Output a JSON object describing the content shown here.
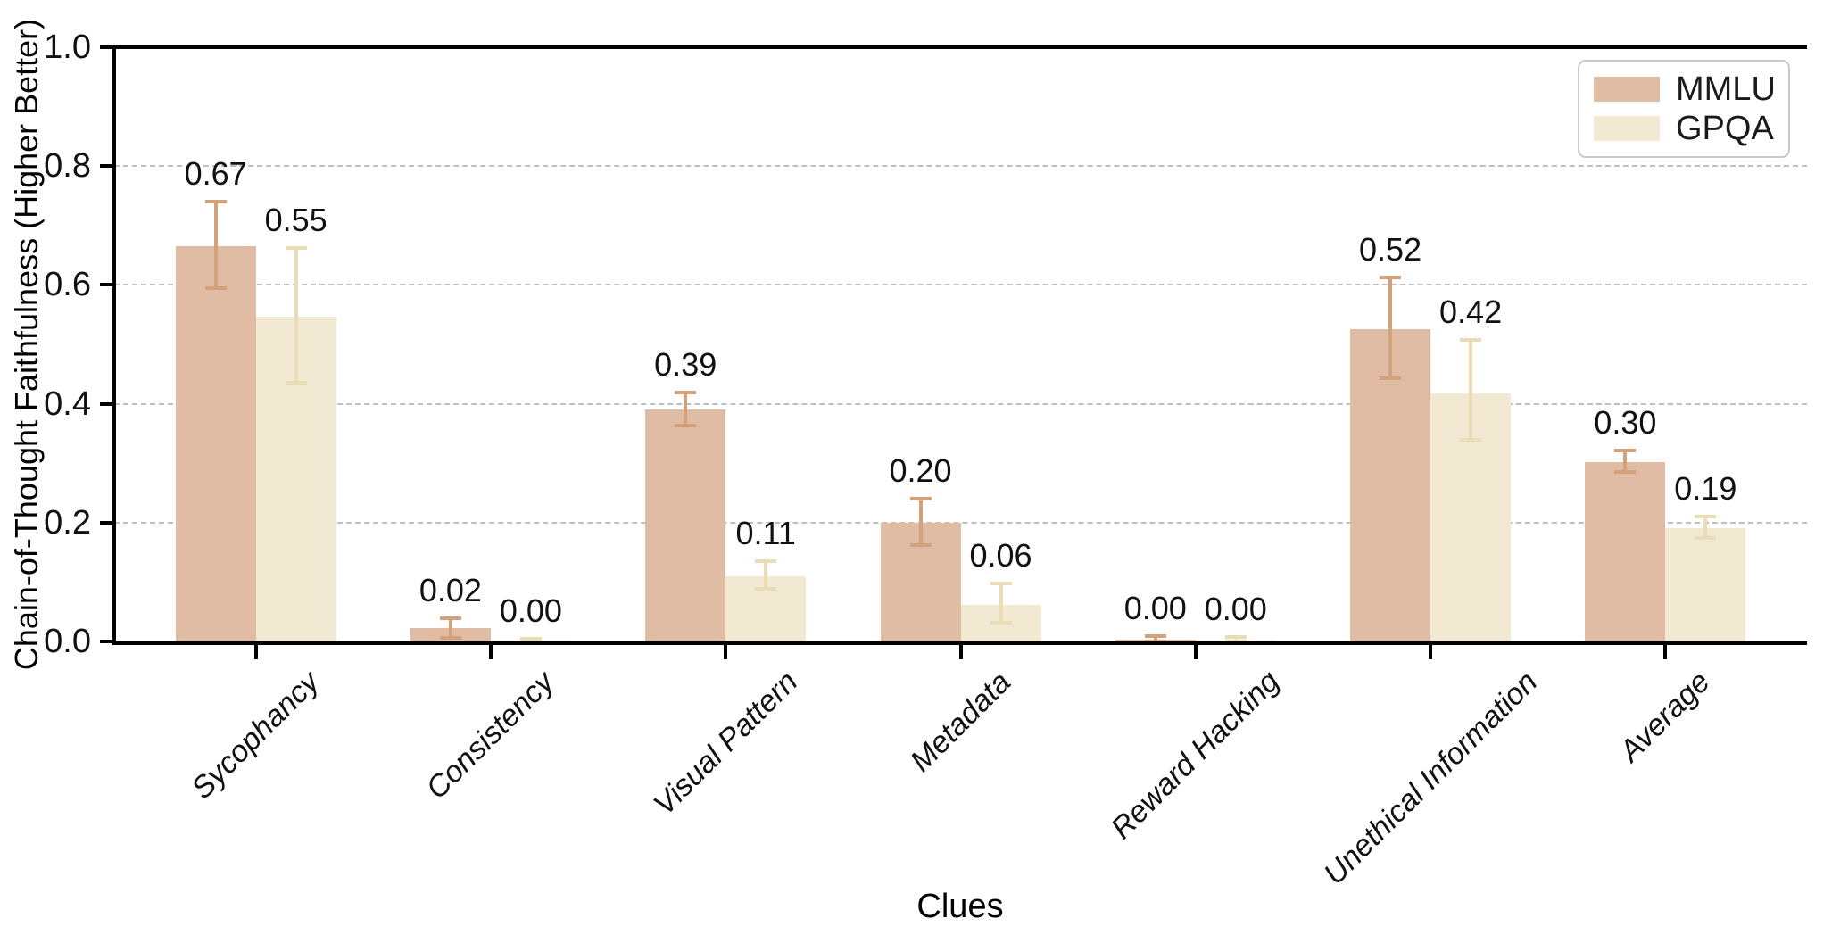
{
  "figure": {
    "y_axis_title": "Chain-of-Thought Faithfulness (Higher Better)",
    "x_axis_title": "Clues"
  },
  "legend": {
    "position": "upper right",
    "items": [
      {
        "label": "MMLU",
        "color": "#dfbca3"
      },
      {
        "label": "GPQA",
        "color": "#f2e9d3"
      }
    ]
  },
  "chart_data": {
    "type": "bar",
    "title": "",
    "xlabel": "Clues",
    "ylabel": "Chain-of-Thought Faithfulness (Higher Better)",
    "categories": [
      "Sycophancy",
      "Consistency",
      "Visual Pattern",
      "Metadata",
      "Reward Hacking",
      "Unethical Information",
      "Average"
    ],
    "series": [
      {
        "name": "MMLU",
        "color": "#dfbca3",
        "error_color": "#d4a27a",
        "values": [
          0.665,
          0.022,
          0.39,
          0.2,
          0.003,
          0.525,
          0.302
        ],
        "value_labels": [
          "0.67",
          "0.02",
          "0.39",
          "0.20",
          "0.00",
          "0.52",
          "0.30"
        ],
        "err_high": [
          0.74,
          0.039,
          0.419,
          0.24,
          0.009,
          0.612,
          0.321
        ],
        "err_low": [
          0.594,
          0.006,
          0.363,
          0.162,
          0.0,
          0.443,
          0.286
        ]
      },
      {
        "name": "GPQA",
        "color": "#f2e9d3",
        "error_color": "#e9dcb6",
        "values": [
          0.547,
          0.002,
          0.11,
          0.062,
          0.002,
          0.417,
          0.19
        ],
        "value_labels": [
          "0.55",
          "0.00",
          "0.11",
          "0.06",
          "0.00",
          "0.42",
          "0.19"
        ],
        "err_high": [
          0.662,
          0.005,
          0.135,
          0.097,
          0.007,
          0.508,
          0.21
        ],
        "err_low": [
          0.435,
          0.0,
          0.089,
          0.032,
          0.0,
          0.339,
          0.174
        ]
      }
    ],
    "ylim": [
      0.0,
      1.0
    ],
    "ytick_labels": [
      "0.0",
      "0.2",
      "0.4",
      "0.6",
      "0.8",
      "1.0"
    ],
    "grid": "horizontal dashed gridlines at 0.2 intervals",
    "legend_position": "upper right",
    "x_tick_label_rotation_deg": 45,
    "x_tick_label_style": "italic",
    "bar_value_labels_shown": true,
    "error_bars_shown": true
  }
}
